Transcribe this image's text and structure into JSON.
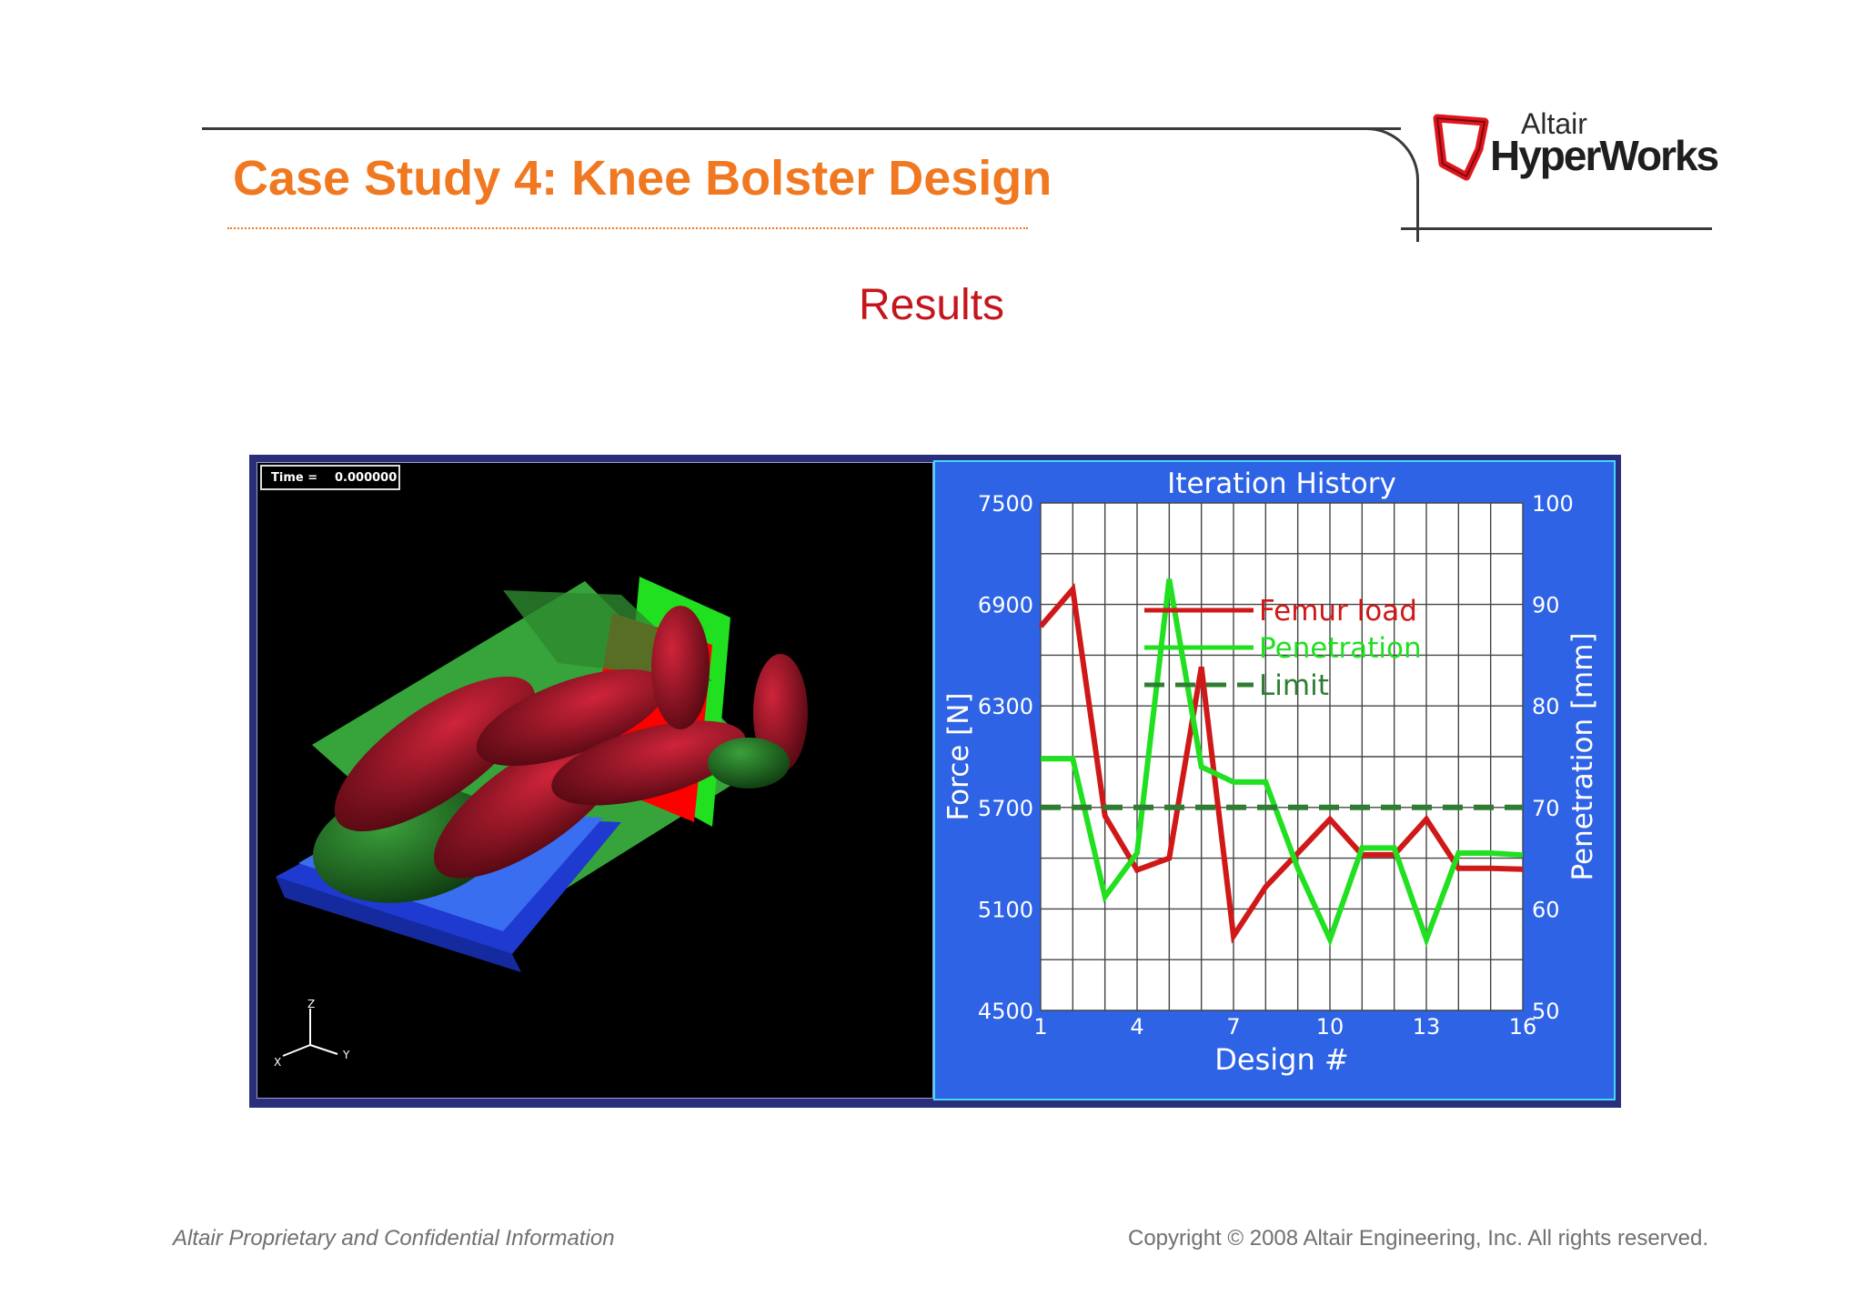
{
  "slide": {
    "title": "Case Study 4: Knee Bolster Design",
    "subtitle": "Results",
    "logo_line1": "Altair",
    "logo_line2": "HyperWorks",
    "footer_left": "Altair Proprietary and Confidential Information",
    "footer_right": "Copyright © 2008 Altair Engineering, Inc. All rights reserved.",
    "accent_color": "#f07820",
    "subtitle_color": "#c4161c"
  },
  "simulation": {
    "time_label": "Time =",
    "time_value": "0.000000",
    "axis_labels": {
      "z": "Z",
      "x": "X",
      "y": "Y"
    }
  },
  "chart_data": {
    "type": "line",
    "title": "Iteration History",
    "xlabel": "Design #",
    "ylabel": "Force [N]",
    "y2label": "Penetration [mm]",
    "xlim": [
      1,
      16
    ],
    "ylim": [
      4500,
      7500
    ],
    "y2lim": [
      50,
      100
    ],
    "x_ticks": [
      1,
      4,
      7,
      10,
      13,
      16
    ],
    "y_ticks": [
      4500,
      5100,
      5700,
      6300,
      6900,
      7500
    ],
    "y2_ticks": [
      50,
      60,
      70,
      80,
      90,
      100
    ],
    "grid": true,
    "legend_position": "top-right",
    "series": [
      {
        "name": "Femur load",
        "axis": "left",
        "color": "#d01818",
        "dash": "solid",
        "x": [
          1,
          2,
          3,
          4,
          5,
          6,
          7,
          8,
          9,
          10,
          11,
          12,
          13,
          14,
          15,
          16
        ],
        "values": [
          6770,
          6990,
          5650,
          5330,
          5400,
          6530,
          4940,
          5230,
          5430,
          5630,
          5420,
          5420,
          5630,
          5340,
          5340,
          5335
        ]
      },
      {
        "name": "Penetration",
        "axis": "right",
        "color": "#20e020",
        "dash": "solid",
        "x": [
          1,
          2,
          3,
          4,
          5,
          6,
          7,
          8,
          9,
          10,
          11,
          12,
          13,
          14,
          15,
          16
        ],
        "values": [
          74.8,
          74.8,
          61.2,
          65.5,
          92.5,
          74.0,
          72.5,
          72.5,
          64.0,
          57.0,
          66.0,
          66.0,
          57.0,
          65.5,
          65.5,
          65.3
        ]
      },
      {
        "name": "Limit",
        "axis": "right",
        "color": "#2e7d32",
        "dash": "dashed",
        "x": [
          1,
          16
        ],
        "values": [
          70,
          70
        ]
      }
    ]
  }
}
